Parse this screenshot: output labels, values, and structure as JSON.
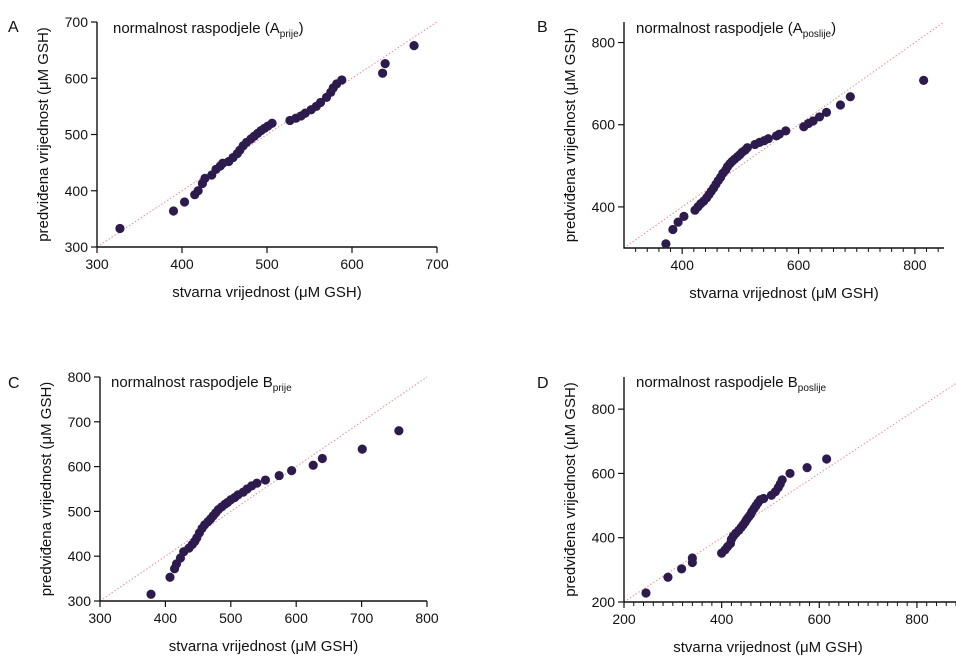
{
  "colors": {
    "point": "#2d1b4e",
    "reference_line": "#f08a8a",
    "axis": "#111111"
  },
  "chart_data": [
    {
      "id": "A",
      "type": "scatter",
      "panel_letter": "A",
      "title": "normalnost raspodjele (A",
      "title_sub": "prije",
      "title_end": ")",
      "xlabel": "stvarna vrijednost (μM GSH)",
      "ylabel": "predviđena vrijednost (μM GSH)",
      "xlim": [
        300,
        700
      ],
      "ylim": [
        300,
        700
      ],
      "xticks": [
        300,
        400,
        500,
        600,
        700
      ],
      "yticks": [
        300,
        400,
        500,
        600,
        700
      ],
      "x_minor_ticks": [],
      "y_minor_ticks": [],
      "grid": false,
      "reference_line": {
        "from": [
          300,
          300
        ],
        "to": [
          700,
          700
        ]
      },
      "points": [
        [
          327,
          333
        ],
        [
          390,
          364
        ],
        [
          403,
          380
        ],
        [
          415,
          393
        ],
        [
          419,
          400
        ],
        [
          424,
          413
        ],
        [
          427,
          422
        ],
        [
          435,
          428
        ],
        [
          440,
          438
        ],
        [
          445,
          444
        ],
        [
          448,
          449
        ],
        [
          455,
          452
        ],
        [
          460,
          459
        ],
        [
          465,
          466
        ],
        [
          468,
          472
        ],
        [
          472,
          480
        ],
        [
          476,
          486
        ],
        [
          481,
          492
        ],
        [
          485,
          497
        ],
        [
          489,
          502
        ],
        [
          493,
          507
        ],
        [
          497,
          511
        ],
        [
          501,
          515
        ],
        [
          506,
          520
        ],
        [
          527,
          525
        ],
        [
          534,
          529
        ],
        [
          540,
          533
        ],
        [
          545,
          538
        ],
        [
          552,
          544
        ],
        [
          558,
          550
        ],
        [
          563,
          557
        ],
        [
          570,
          566
        ],
        [
          575,
          575
        ],
        [
          578,
          583
        ],
        [
          582,
          590
        ],
        [
          588,
          597
        ],
        [
          636,
          609
        ],
        [
          639,
          626
        ],
        [
          673,
          658
        ]
      ]
    },
    {
      "id": "B",
      "type": "scatter",
      "panel_letter": "B",
      "title": "normalnost raspodjele (A",
      "title_sub": "poslije",
      "title_end": ")",
      "xlabel": "stvarna vrijednost (μM GSH)",
      "ylabel": "predviđena vrijednost (μM GSH)",
      "xlim": [
        300,
        850
      ],
      "ylim": [
        300,
        850
      ],
      "xticks": [
        400,
        600,
        800
      ],
      "yticks": [
        400,
        600,
        800
      ],
      "x_minor_ticks": [
        320,
        340,
        360,
        380,
        420,
        440,
        460,
        480,
        500,
        520,
        540,
        560,
        580,
        620,
        640,
        660,
        680,
        700,
        720,
        740,
        760,
        780,
        820,
        840
      ],
      "y_minor_ticks": [],
      "grid": false,
      "reference_line": {
        "from": [
          300,
          300
        ],
        "to": [
          850,
          850
        ]
      },
      "points": [
        [
          372,
          310
        ],
        [
          384,
          345
        ],
        [
          393,
          363
        ],
        [
          403,
          377
        ],
        [
          422,
          392
        ],
        [
          427,
          400
        ],
        [
          432,
          408
        ],
        [
          437,
          414
        ],
        [
          442,
          422
        ],
        [
          446,
          430
        ],
        [
          450,
          438
        ],
        [
          454,
          446
        ],
        [
          458,
          455
        ],
        [
          462,
          464
        ],
        [
          466,
          472
        ],
        [
          470,
          482
        ],
        [
          475,
          490
        ],
        [
          478,
          498
        ],
        [
          482,
          505
        ],
        [
          486,
          511
        ],
        [
          490,
          516
        ],
        [
          495,
          522
        ],
        [
          499,
          527
        ],
        [
          503,
          533
        ],
        [
          508,
          538
        ],
        [
          512,
          544
        ],
        [
          525,
          552
        ],
        [
          533,
          557
        ],
        [
          541,
          561
        ],
        [
          548,
          566
        ],
        [
          562,
          573
        ],
        [
          567,
          577
        ],
        [
          578,
          585
        ],
        [
          609,
          595
        ],
        [
          617,
          603
        ],
        [
          625,
          609
        ],
        [
          636,
          619
        ],
        [
          648,
          630
        ],
        [
          672,
          648
        ],
        [
          689,
          668
        ],
        [
          815,
          708
        ]
      ]
    },
    {
      "id": "C",
      "type": "scatter",
      "panel_letter": "C",
      "title": "normalnost raspodjele B",
      "title_sub": "prije",
      "title_end": "",
      "xlabel": "stvarna vrijednost (μM GSH)",
      "ylabel": "predviđena vrijednost (μM GSH)",
      "xlim": [
        300,
        800
      ],
      "ylim": [
        300,
        800
      ],
      "xticks": [
        300,
        400,
        500,
        600,
        700,
        800
      ],
      "yticks": [
        300,
        400,
        500,
        600,
        700,
        800
      ],
      "x_minor_ticks": [],
      "y_minor_ticks": [],
      "grid": false,
      "reference_line": {
        "from": [
          300,
          300
        ],
        "to": [
          800,
          800
        ]
      },
      "points": [
        [
          378,
          315
        ],
        [
          407,
          353
        ],
        [
          414,
          372
        ],
        [
          417,
          383
        ],
        [
          423,
          396
        ],
        [
          428,
          410
        ],
        [
          436,
          418
        ],
        [
          441,
          426
        ],
        [
          445,
          433
        ],
        [
          448,
          441
        ],
        [
          452,
          452
        ],
        [
          456,
          462
        ],
        [
          460,
          470
        ],
        [
          465,
          477
        ],
        [
          469,
          483
        ],
        [
          473,
          490
        ],
        [
          477,
          497
        ],
        [
          481,
          504
        ],
        [
          486,
          510
        ],
        [
          491,
          516
        ],
        [
          495,
          520
        ],
        [
          500,
          526
        ],
        [
          506,
          531
        ],
        [
          511,
          537
        ],
        [
          519,
          543
        ],
        [
          525,
          550
        ],
        [
          532,
          557
        ],
        [
          540,
          563
        ],
        [
          553,
          570
        ],
        [
          574,
          580
        ],
        [
          593,
          591
        ],
        [
          626,
          603
        ],
        [
          640,
          618
        ],
        [
          701,
          639
        ],
        [
          757,
          680
        ]
      ]
    },
    {
      "id": "D",
      "type": "scatter",
      "panel_letter": "D",
      "title": "normalnost raspodjele B",
      "title_sub": "poslije",
      "title_end": "",
      "xlabel": "stvarna vrijednost (μM GSH)",
      "ylabel": "predviđena vrijednost (μM GSH)",
      "xlim": [
        200,
        880
      ],
      "ylim": [
        200,
        900
      ],
      "xticks": [
        200,
        400,
        600,
        800
      ],
      "yticks": [
        200,
        400,
        600,
        800
      ],
      "x_minor_ticks": [
        220,
        240,
        260,
        280,
        300,
        320,
        340,
        360,
        380,
        420,
        440,
        460,
        480,
        500,
        520,
        540,
        560,
        580,
        620,
        640,
        660,
        680,
        700,
        720,
        740,
        760,
        780,
        820,
        840,
        860,
        880
      ],
      "y_minor_ticks": [],
      "grid": false,
      "reference_line": {
        "from": [
          200,
          200
        ],
        "to": [
          880,
          880
        ]
      },
      "points": [
        [
          245,
          228
        ],
        [
          290,
          277
        ],
        [
          318,
          303
        ],
        [
          340,
          323
        ],
        [
          340,
          337
        ],
        [
          400,
          352
        ],
        [
          407,
          362
        ],
        [
          412,
          372
        ],
        [
          418,
          382
        ],
        [
          420,
          395
        ],
        [
          424,
          405
        ],
        [
          429,
          414
        ],
        [
          435,
          423
        ],
        [
          440,
          432
        ],
        [
          444,
          440
        ],
        [
          448,
          448
        ],
        [
          451,
          456
        ],
        [
          455,
          464
        ],
        [
          459,
          472
        ],
        [
          462,
          481
        ],
        [
          466,
          490
        ],
        [
          470,
          499
        ],
        [
          474,
          508
        ],
        [
          479,
          518
        ],
        [
          486,
          522
        ],
        [
          502,
          532
        ],
        [
          510,
          543
        ],
        [
          516,
          556
        ],
        [
          520,
          567
        ],
        [
          524,
          580
        ],
        [
          540,
          600
        ],
        [
          575,
          618
        ],
        [
          615,
          645
        ]
      ]
    }
  ]
}
